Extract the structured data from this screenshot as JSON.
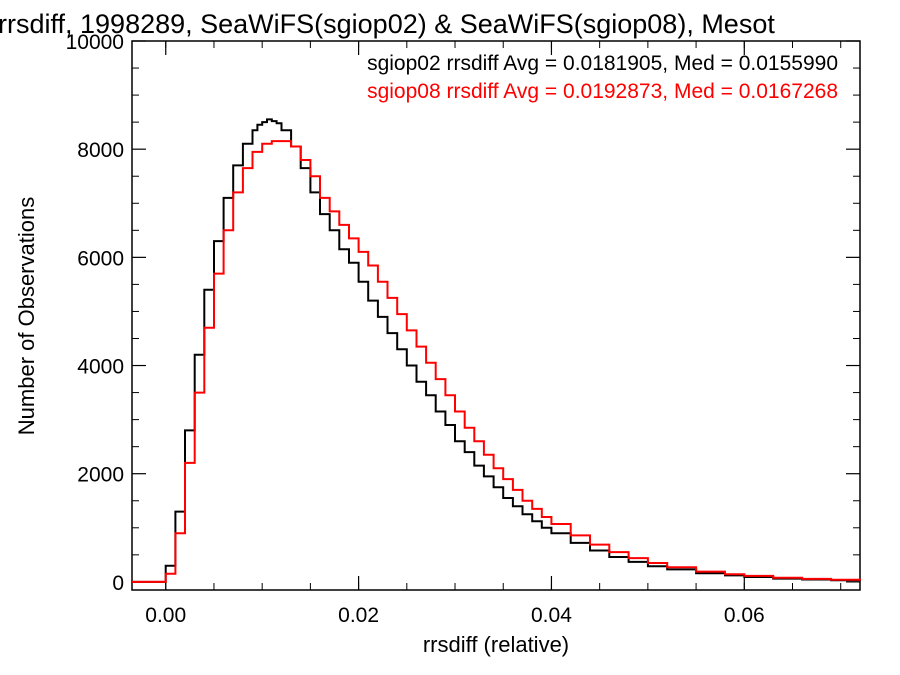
{
  "chart_data": {
    "type": "line",
    "title": "rrsdiff, 1998289, SeaWiFS(sgiop02) & SeaWiFS(sgiop08), Mesot",
    "xlabel": "rrsdiff (relative)",
    "ylabel": "Number of Observations",
    "xlim": [
      -0.0035,
      0.072
    ],
    "ylim": [
      -150,
      10000
    ],
    "xticks": [
      0.0,
      0.02,
      0.04,
      0.06
    ],
    "xtick_labels": [
      "0.00",
      "0.02",
      "0.04",
      "0.06"
    ],
    "yticks": [
      0,
      2000,
      4000,
      6000,
      8000,
      10000
    ],
    "ytick_labels": [
      "0",
      "2000",
      "4000",
      "6000",
      "8000",
      "10000"
    ],
    "grid": false,
    "legend": "top-right",
    "series": [
      {
        "label": "sgiop02 rrsdiff Avg = 0.0181905, Med = 0.0155990",
        "color": "#000000",
        "x": [
          -0.0035,
          -0.0002,
          0.0,
          0.001,
          0.002,
          0.003,
          0.004,
          0.005,
          0.006,
          0.007,
          0.008,
          0.009,
          0.0095,
          0.01,
          0.0105,
          0.011,
          0.0115,
          0.012,
          0.013,
          0.014,
          0.015,
          0.016,
          0.017,
          0.018,
          0.019,
          0.02,
          0.021,
          0.022,
          0.023,
          0.024,
          0.025,
          0.026,
          0.027,
          0.028,
          0.029,
          0.03,
          0.031,
          0.032,
          0.033,
          0.034,
          0.035,
          0.036,
          0.037,
          0.038,
          0.039,
          0.04,
          0.042,
          0.044,
          0.046,
          0.048,
          0.05,
          0.052,
          0.055,
          0.058,
          0.06,
          0.063,
          0.066,
          0.069,
          0.072
        ],
        "y": [
          0,
          0,
          300,
          1300,
          2800,
          4200,
          5400,
          6300,
          7100,
          7700,
          8100,
          8350,
          8450,
          8500,
          8550,
          8520,
          8480,
          8350,
          8050,
          7650,
          7200,
          6800,
          6500,
          6150,
          5900,
          5550,
          5200,
          4900,
          4600,
          4300,
          4000,
          3700,
          3450,
          3150,
          2900,
          2600,
          2400,
          2150,
          1950,
          1750,
          1550,
          1400,
          1250,
          1120,
          1000,
          900,
          720,
          580,
          460,
          370,
          290,
          230,
          160,
          120,
          90,
          60,
          45,
          30,
          20
        ]
      },
      {
        "label": "sgiop08 rrsdiff Avg = 0.0192873, Med = 0.0167268",
        "color": "#ff0000",
        "x": [
          -0.0035,
          -0.0002,
          0.0,
          0.001,
          0.002,
          0.003,
          0.004,
          0.005,
          0.006,
          0.007,
          0.008,
          0.009,
          0.01,
          0.011,
          0.012,
          0.013,
          0.014,
          0.015,
          0.016,
          0.017,
          0.018,
          0.019,
          0.02,
          0.021,
          0.022,
          0.023,
          0.024,
          0.025,
          0.026,
          0.027,
          0.028,
          0.029,
          0.03,
          0.031,
          0.032,
          0.033,
          0.034,
          0.035,
          0.036,
          0.037,
          0.038,
          0.039,
          0.04,
          0.042,
          0.044,
          0.046,
          0.048,
          0.05,
          0.052,
          0.055,
          0.058,
          0.06,
          0.063,
          0.066,
          0.069,
          0.072
        ],
        "y": [
          0,
          0,
          150,
          900,
          2200,
          3500,
          4700,
          5700,
          6500,
          7200,
          7650,
          7950,
          8100,
          8150,
          8150,
          8050,
          7800,
          7500,
          7100,
          6850,
          6600,
          6350,
          6100,
          5850,
          5550,
          5250,
          4950,
          4650,
          4350,
          4050,
          3750,
          3450,
          3150,
          2850,
          2600,
          2350,
          2100,
          1900,
          1700,
          1500,
          1350,
          1200,
          1070,
          860,
          690,
          550,
          440,
          350,
          270,
          190,
          140,
          110,
          75,
          55,
          40,
          25
        ]
      }
    ]
  }
}
